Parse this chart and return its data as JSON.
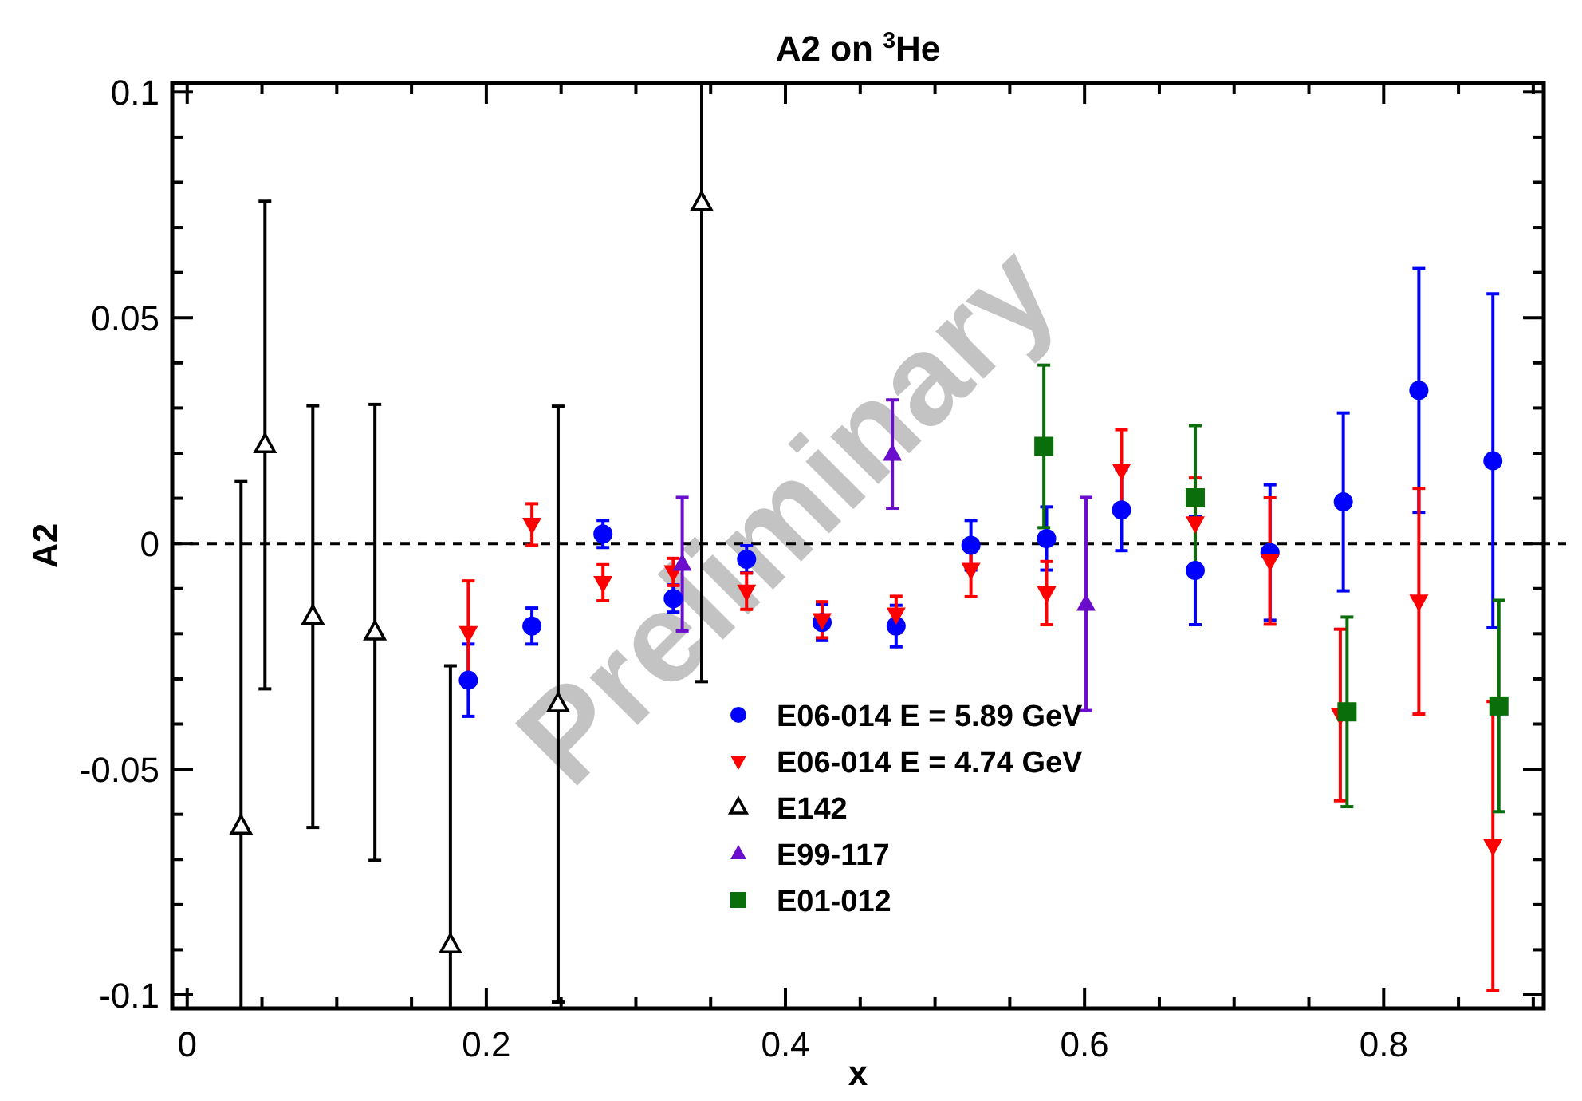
{
  "chart_data": {
    "type": "scatter",
    "title": "A2 on $^{3}$He",
    "xlabel": "x",
    "ylabel": "A2",
    "xlim": [
      -0.01,
      0.907
    ],
    "ylim": [
      -0.103,
      0.102
    ],
    "xticks": [
      0,
      {
        "value": 0.05,
        "label": null
      },
      {
        "value": 0.1,
        "label": null
      },
      {
        "value": 0.15,
        "label": null
      },
      0.2,
      {
        "value": 0.25,
        "label": null
      },
      {
        "value": 0.3,
        "label": null
      },
      {
        "value": 0.35,
        "label": null
      },
      0.4,
      {
        "value": 0.45,
        "label": null
      },
      {
        "value": 0.5,
        "label": null
      },
      {
        "value": 0.55,
        "label": null
      },
      0.6,
      {
        "value": 0.65,
        "label": null
      },
      {
        "value": 0.7,
        "label": null
      },
      {
        "value": 0.75,
        "label": null
      },
      0.8,
      {
        "value": 0.85,
        "label": null
      },
      {
        "value": 0.9,
        "label": null
      }
    ],
    "yticks": [
      -0.1,
      {
        "value": -0.09,
        "label": null
      },
      {
        "value": -0.08,
        "label": null
      },
      {
        "value": -0.07,
        "label": null
      },
      {
        "value": -0.06,
        "label": null
      },
      -0.05,
      {
        "value": -0.04,
        "label": null
      },
      {
        "value": -0.03,
        "label": null
      },
      {
        "value": -0.02,
        "label": null
      },
      {
        "value": -0.01,
        "label": null
      },
      0,
      {
        "value": 0.01,
        "label": null
      },
      {
        "value": 0.02,
        "label": null
      },
      {
        "value": 0.03,
        "label": null
      },
      {
        "value": 0.04,
        "label": null
      },
      0.05,
      {
        "value": 0.06,
        "label": null
      },
      {
        "value": 0.07,
        "label": null
      },
      {
        "value": 0.08,
        "label": null
      },
      {
        "value": 0.09,
        "label": null
      },
      0.1
    ],
    "ref_lines": [
      {
        "axis": "y",
        "value": 0,
        "color": "#000000",
        "line_style": "dashed"
      }
    ],
    "legend": "bottom",
    "grid": false,
    "annotations": [
      "Preliminary"
    ],
    "series": [
      {
        "name": "E06-014 E = 5.89 GeV",
        "color": "#0000ff",
        "marker": "circle",
        "x": [
          0.188,
          0.2305,
          0.278,
          0.325,
          0.374,
          0.4245,
          0.474,
          0.524,
          0.5746,
          0.6247,
          0.674,
          0.724,
          0.773,
          0.8235,
          0.873
        ],
        "values": [
          -0.0303,
          -0.0183,
          0.0021,
          -0.0122,
          -0.0035,
          -0.0175,
          -0.0183,
          -0.0004,
          0.0011,
          0.0074,
          -0.006,
          -0.002,
          0.0092,
          0.0339,
          0.0183
        ],
        "errors": [
          0.008,
          0.004,
          0.003,
          0.003,
          0.003,
          0.004,
          0.0046,
          0.0055,
          0.007,
          0.009,
          0.012,
          0.015,
          0.0197,
          0.027,
          0.037
        ]
      },
      {
        "name": "E06-014 E = 4.74 GeV",
        "color": "#ff0000",
        "marker": "triangle-down",
        "x": [
          0.188,
          0.2305,
          0.278,
          0.325,
          0.374,
          0.4245,
          0.474,
          0.524,
          0.5746,
          0.6247,
          0.674,
          0.724,
          0.771,
          0.8235,
          0.873
        ],
        "values": [
          -0.0198,
          0.0042,
          -0.0087,
          -0.0063,
          -0.0106,
          -0.0169,
          -0.0157,
          -0.0058,
          -0.011,
          0.0162,
          0.0045,
          -0.0039,
          -0.038,
          -0.0128,
          -0.067
        ],
        "errors": [
          0.0115,
          0.0046,
          0.004,
          0.003,
          0.004,
          0.004,
          0.004,
          0.006,
          0.007,
          0.009,
          0.01,
          0.014,
          0.019,
          0.025,
          0.032
        ]
      },
      {
        "name": "E142",
        "color": "#000000",
        "marker": "triangle-open",
        "x": [
          0.036,
          0.052,
          0.084,
          0.1255,
          0.176,
          0.248,
          0.344
        ],
        "values": [
          -0.0627,
          0.0218,
          -0.0162,
          -0.0197,
          -0.089,
          -0.0356,
          0.0754
        ],
        "errors": [
          [
            -0.103,
            0.0137
          ],
          0.054,
          0.0467,
          0.0505,
          [
            -0.103,
            -0.0271
          ],
          0.066,
          [
            -0.0306,
            0.102
          ]
        ]
      },
      {
        "name": "E99-117",
        "color": "#6a0dcc",
        "marker": "triangle",
        "x": [
          0.331,
          0.4715,
          0.601
        ],
        "values": [
          -0.0046,
          0.0198,
          -0.0134
        ],
        "errors": [
          0.0148,
          0.012,
          0.0236
        ]
      },
      {
        "name": "E01-012",
        "color": "#0a6e0a",
        "marker": "square",
        "x": [
          0.5728,
          0.674,
          0.7755,
          0.877
        ],
        "values": [
          0.0215,
          0.0101,
          -0.0373,
          -0.036
        ],
        "errors": [
          0.018,
          0.016,
          0.021,
          0.0234
        ]
      }
    ]
  }
}
